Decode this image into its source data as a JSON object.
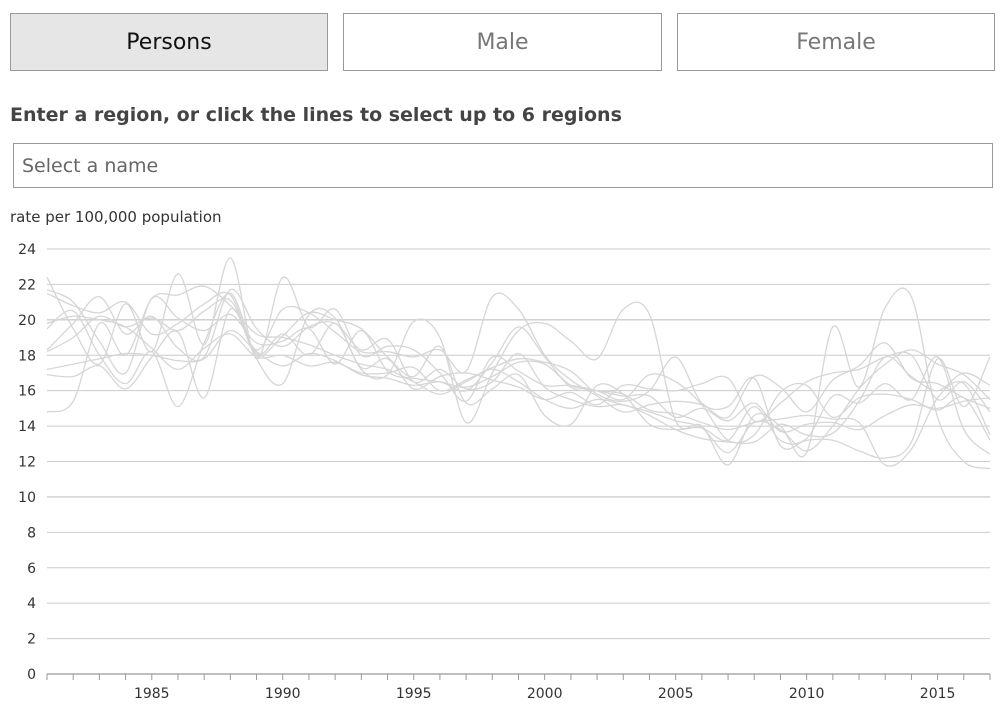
{
  "tabs": [
    {
      "label": "Persons",
      "active": true
    },
    {
      "label": "Male",
      "active": false
    },
    {
      "label": "Female",
      "active": false
    }
  ],
  "prompt": "Enter a region, or click the lines to select up to 6 regions",
  "search": {
    "placeholder": "Select a name",
    "value": ""
  },
  "colors": {
    "line": "#d6d6d6",
    "grid": "#cccccc",
    "axis": "#999999"
  },
  "chart_data": {
    "type": "line",
    "ylabel": "rate per 100,000 population",
    "xlabel": "",
    "xlim": [
      1981,
      2017
    ],
    "ylim": [
      0,
      24
    ],
    "x_ticks": [
      1985,
      1990,
      1995,
      2000,
      2005,
      2010,
      2015
    ],
    "y_ticks": [
      0,
      2,
      4,
      6,
      8,
      10,
      12,
      14,
      16,
      18,
      20,
      22,
      24
    ],
    "grid": true,
    "legend": "none",
    "series": [
      {
        "x": [
          1981,
          1982,
          1983,
          1984,
          1985,
          1986,
          1987,
          1988,
          1989,
          1990,
          1991,
          1992,
          1993,
          1994,
          1995,
          1996,
          1997,
          1998,
          1999,
          2000,
          2001,
          2002,
          2003,
          2004,
          2005,
          2006,
          2007,
          2008,
          2009,
          2010,
          2011,
          2012,
          2013,
          2014,
          2015,
          2016,
          2017
        ],
        "values": [
          22.4,
          19.5,
          17.5,
          20.9,
          18.2,
          22.6,
          18.6,
          23.5,
          17.8,
          22.4,
          19.6,
          20.6,
          18.0,
          18.5,
          18.3,
          17.0,
          15.4,
          17.9,
          17.1,
          16.3,
          16.3,
          16.0,
          15.7,
          15.7,
          14.5,
          15.0,
          14.3,
          15.3,
          13.7,
          14.1,
          14.2,
          13.8,
          14.6,
          15.2,
          15.0,
          15.4,
          15.6
        ]
      },
      {
        "x": [
          1981,
          1982,
          1983,
          1984,
          1985,
          1986,
          1987,
          1988,
          1989,
          1990,
          1991,
          1992,
          1993,
          1994,
          1995,
          1996,
          1997,
          1998,
          1999,
          2000,
          2001,
          2002,
          2003,
          2004,
          2005,
          2006,
          2007,
          2008,
          2009,
          2010,
          2011,
          2012,
          2013,
          2014,
          2015,
          2016,
          2017
        ],
        "values": [
          14.8,
          15.4,
          19.8,
          18.0,
          21.2,
          21.4,
          21.9,
          20.8,
          19.2,
          19.0,
          18.6,
          18.0,
          17.5,
          17.2,
          16.5,
          15.8,
          16.5,
          17.2,
          16.5,
          15.5,
          15.0,
          15.5,
          15.2,
          14.8,
          14.3,
          13.9,
          12.5,
          14.2,
          13.8,
          12.6,
          14.0,
          16.1,
          17.5,
          18.3,
          17.5,
          16.9,
          15.5
        ]
      },
      {
        "x": [
          1981,
          1982,
          1983,
          1984,
          1985,
          1986,
          1987,
          1988,
          1989,
          1990,
          1991,
          1992,
          1993,
          1994,
          1995,
          1996,
          1997,
          1998,
          1999,
          2000,
          2001,
          2002,
          2003,
          2004,
          2005,
          2006,
          2007,
          2008,
          2009,
          2010,
          2011,
          2012,
          2013,
          2014,
          2015,
          2016,
          2017
        ],
        "values": [
          19.5,
          20.5,
          18.0,
          16.4,
          18.2,
          15.1,
          18.7,
          21.5,
          17.8,
          16.4,
          20.3,
          20.1,
          17.2,
          16.9,
          19.9,
          19.0,
          14.2,
          17.0,
          19.4,
          19.8,
          18.8,
          17.8,
          20.6,
          20.3,
          14.3,
          14.0,
          11.8,
          14.6,
          14.0,
          12.5,
          19.6,
          16.2,
          20.7,
          21.3,
          14.5,
          12.0,
          11.6
        ]
      },
      {
        "x": [
          1981,
          1982,
          1983,
          1984,
          1985,
          1986,
          1987,
          1988,
          1989,
          1990,
          1991,
          1992,
          1993,
          1994,
          1995,
          1996,
          1997,
          1998,
          1999,
          2000,
          2001,
          2002,
          2003,
          2004,
          2005,
          2006,
          2007,
          2008,
          2009,
          2010,
          2011,
          2012,
          2013,
          2014,
          2015,
          2016,
          2017
        ],
        "values": [
          18.2,
          19.0,
          20.2,
          19.6,
          20.1,
          19.4,
          20.5,
          21.1,
          18.3,
          20.6,
          20.4,
          19.3,
          18.2,
          18.2,
          17.9,
          18.3,
          17.1,
          21.3,
          20.6,
          18.0,
          16.6,
          15.7,
          14.8,
          15.2,
          15.4,
          15.2,
          14.5,
          16.8,
          16.2,
          14.8,
          16.6,
          17.4,
          18.7,
          16.7,
          16.4,
          15.6,
          15.0
        ]
      },
      {
        "x": [
          1981,
          1982,
          1983,
          1984,
          1985,
          1986,
          1987,
          1988,
          1989,
          1990,
          1991,
          1992,
          1993,
          1994,
          1995,
          1996,
          1997,
          1998,
          1999,
          2000,
          2001,
          2002,
          2003,
          2004,
          2005,
          2006,
          2007,
          2008,
          2009,
          2010,
          2011,
          2012,
          2013,
          2014,
          2015,
          2016,
          2017
        ],
        "values": [
          21.7,
          21.0,
          18.8,
          17.0,
          21.2,
          20.1,
          19.4,
          20.3,
          18.7,
          18.8,
          19.5,
          17.5,
          19.4,
          17.1,
          16.7,
          16.5,
          16.2,
          16.8,
          17.6,
          17.5,
          16.3,
          16.0,
          15.5,
          16.9,
          16.5,
          15.2,
          13.2,
          13.5,
          15.9,
          16.3,
          14.5,
          15.6,
          15.8,
          15.5,
          14.9,
          15.6,
          13.2
        ]
      },
      {
        "x": [
          1981,
          1982,
          1983,
          1984,
          1985,
          1986,
          1987,
          1988,
          1989,
          1990,
          1991,
          1992,
          1993,
          1994,
          1995,
          1996,
          1997,
          1998,
          1999,
          2000,
          2001,
          2002,
          2003,
          2004,
          2005,
          2006,
          2007,
          2008,
          2009,
          2010,
          2011,
          2012,
          2013,
          2014,
          2015,
          2016,
          2017
        ],
        "values": [
          17.2,
          17.5,
          17.8,
          18.1,
          18.0,
          17.7,
          17.8,
          19.4,
          18.2,
          17.4,
          18.1,
          17.7,
          16.9,
          16.7,
          16.3,
          16.5,
          16.0,
          17.6,
          19.6,
          17.9,
          16.2,
          16.0,
          15.8,
          14.9,
          14.7,
          14.2,
          13.8,
          14.2,
          14.4,
          14.6,
          14.4,
          14.2,
          11.8,
          12.7,
          15.6,
          16.4,
          13.5
        ]
      },
      {
        "x": [
          1981,
          1982,
          1983,
          1984,
          1985,
          1986,
          1987,
          1988,
          1989,
          1990,
          1991,
          1992,
          1993,
          1994,
          1995,
          1996,
          1997,
          1998,
          1999,
          2000,
          2001,
          2002,
          2003,
          2004,
          2005,
          2006,
          2007,
          2008,
          2009,
          2010,
          2011,
          2012,
          2013,
          2014,
          2015,
          2016,
          2017
        ],
        "values": [
          18.3,
          19.8,
          21.3,
          19.2,
          20.2,
          18.4,
          17.9,
          21.7,
          19.5,
          18.5,
          19.6,
          19.8,
          18.3,
          18.9,
          16.5,
          17.2,
          16.1,
          16.5,
          18.1,
          16.2,
          15.5,
          15.1,
          15.2,
          14.6,
          13.8,
          13.3,
          13.1,
          13.1,
          14.1,
          13.5,
          13.6,
          15.4,
          17.9,
          16.8,
          16.0,
          17.0,
          16.3
        ]
      },
      {
        "x": [
          1981,
          1982,
          1983,
          1984,
          1985,
          1986,
          1987,
          1988,
          1989,
          1990,
          1991,
          1992,
          1993,
          1994,
          1995,
          1996,
          1997,
          1998,
          1999,
          2000,
          2001,
          2002,
          2003,
          2004,
          2005,
          2006,
          2007,
          2008,
          2009,
          2010,
          2011,
          2012,
          2013,
          2014,
          2015,
          2016,
          2017
        ],
        "values": [
          16.9,
          16.8,
          17.4,
          16.1,
          17.9,
          19.3,
          15.6,
          20.6,
          18.0,
          19.1,
          20.4,
          20.0,
          19.5,
          17.9,
          16.8,
          18.5,
          15.3,
          16.1,
          16.9,
          14.6,
          14.1,
          16.3,
          15.8,
          14.1,
          13.8,
          13.9,
          13.2,
          15.1,
          13.2,
          13.3,
          15.7,
          15.3,
          16.4,
          15.5,
          17.9,
          13.8,
          12.4
        ]
      },
      {
        "x": [
          1981,
          1982,
          1983,
          1984,
          1985,
          1986,
          1987,
          1988,
          1989,
          1990,
          1991,
          1992,
          1993,
          1994,
          1995,
          1996,
          1997,
          1998,
          1999,
          2000,
          2001,
          2002,
          2003,
          2004,
          2005,
          2006,
          2007,
          2008,
          2009,
          2010,
          2011,
          2012,
          2013,
          2014,
          2015,
          2016,
          2017
        ],
        "values": [
          19.8,
          20.2,
          20.0,
          19.6,
          18.4,
          17.2,
          18.4,
          19.2,
          17.9,
          18.0,
          17.4,
          17.6,
          17.0,
          17.0,
          17.3,
          16.0,
          16.6,
          17.3,
          17.8,
          17.6,
          17.1,
          15.8,
          15.4,
          16.0,
          17.9,
          15.3,
          15.1,
          16.7,
          12.9,
          13.2,
          13.2,
          12.6,
          12.2,
          13.1,
          17.8,
          15.1,
          17.9
        ]
      },
      {
        "x": [
          1981,
          1982,
          1983,
          1984,
          1985,
          1986,
          1987,
          1988,
          1989,
          1990,
          1991,
          1992,
          1993,
          1994,
          1995,
          1996,
          1997,
          1998,
          1999,
          2000,
          2001,
          2002,
          2003,
          2004,
          2005,
          2006,
          2007,
          2008,
          2009,
          2010,
          2011,
          2012,
          2013,
          2014,
          2015,
          2016,
          2017
        ],
        "values": [
          21.5,
          20.8,
          20.4,
          21.0,
          19.2,
          19.8,
          20.9,
          21.4,
          18.1,
          19.2,
          18.0,
          19.8,
          17.3,
          17.8,
          16.1,
          16.8,
          17.0,
          16.6,
          16.2,
          15.5,
          15.9,
          15.2,
          16.3,
          16.1,
          16.0,
          16.4,
          16.7,
          14.3,
          15.3,
          16.5,
          17.0,
          17.2,
          17.9,
          18.0,
          15.5,
          16.5,
          14.8
        ]
      }
    ]
  }
}
